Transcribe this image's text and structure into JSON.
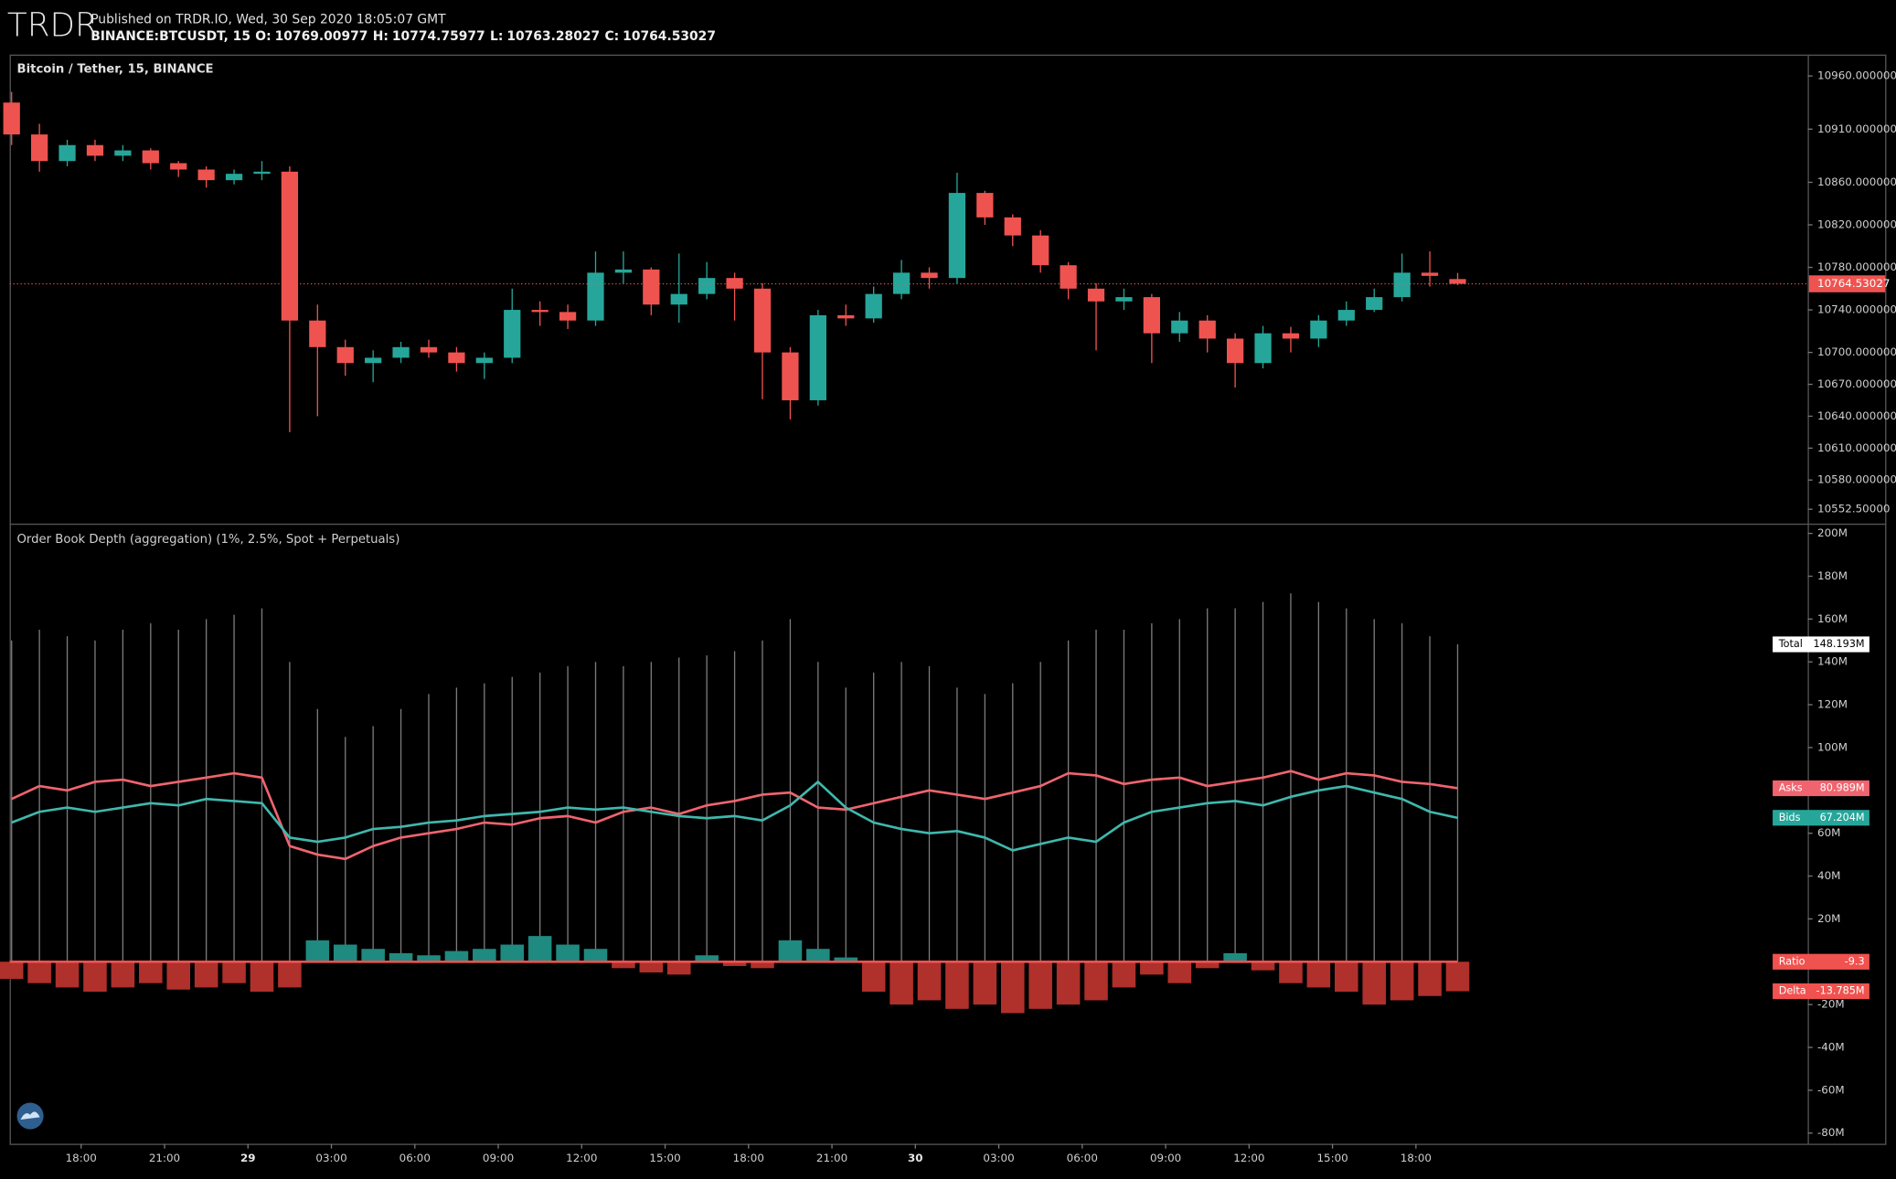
{
  "header": {
    "logo": "TRDR",
    "published": "Published on TRDR.IO, Wed, 30 Sep 2020 18:05:07 GMT",
    "symbol": "BINANCE:BTCUSDT, 15",
    "ohlc": [
      {
        "label": "O:",
        "value": 10769.00977
      },
      {
        "label": "H:",
        "value": 10774.75977
      },
      {
        "label": "L:",
        "value": 10763.28027
      },
      {
        "label": "C:",
        "value": 10764.53027
      }
    ]
  },
  "chart_data": [
    {
      "type": "candlestick",
      "title": "Bitcoin / Tether, 15, BINANCE",
      "up_color": "#26a69a",
      "down_color": "#ef5350",
      "x": [
        15.5,
        16.5,
        17.5,
        18.5,
        19.5,
        20.5,
        21.5,
        22.5,
        23.5,
        24.5,
        25.5,
        26.5,
        27.5,
        28.5,
        29.5,
        30.5,
        31.5,
        32.5,
        33.5,
        34.5,
        35.5,
        36.5,
        37.5,
        38.5,
        39.5,
        40.5,
        41.5,
        42.5,
        43.5,
        44.5,
        45.5,
        46.5,
        47.5,
        48.5,
        49.5,
        50.5,
        51.5,
        52.5,
        53.5,
        54.5,
        55.5,
        56.5,
        57.5,
        58.5,
        59.5,
        60.5,
        61.5,
        62.5,
        63.5,
        64.5,
        65.5,
        66.5,
        67.5
      ],
      "open": [
        10935,
        10905,
        10880,
        10895,
        10885,
        10890,
        10878,
        10872,
        10862,
        10868,
        10870,
        10730,
        10705,
        10690,
        10695,
        10705,
        10700,
        10690,
        10695,
        10740,
        10738,
        10730,
        10775,
        10778,
        10745,
        10755,
        10770,
        10760,
        10700,
        10655,
        10735,
        10732,
        10755,
        10775,
        10770,
        10850,
        10827,
        10810,
        10782,
        10760,
        10748,
        10752,
        10718,
        10730,
        10713,
        10690,
        10718,
        10713,
        10730,
        10740,
        10752,
        10775,
        10769.00977
      ],
      "high": [
        10945,
        10915,
        10900,
        10900,
        10895,
        10892,
        10880,
        10875,
        10872,
        10880,
        10875,
        10745,
        10712,
        10702,
        10710,
        10712,
        10705,
        10700,
        10760,
        10748,
        10745,
        10795,
        10795,
        10780,
        10793,
        10785,
        10775,
        10765,
        10705,
        10740,
        10745,
        10762,
        10787,
        10780,
        10869,
        10852,
        10830,
        10815,
        10785,
        10765,
        10760,
        10755,
        10738,
        10735,
        10718,
        10725,
        10724,
        10735,
        10748,
        10760,
        10793,
        10795,
        10774.75977
      ],
      "low": [
        10895,
        10870,
        10875,
        10880,
        10880,
        10872,
        10865,
        10855,
        10858,
        10862,
        10625,
        10640,
        10678,
        10672,
        10690,
        10695,
        10682,
        10675,
        10690,
        10725,
        10722,
        10725,
        10765,
        10735,
        10728,
        10750,
        10730,
        10656,
        10637,
        10650,
        10725,
        10728,
        10750,
        10760,
        10765,
        10820,
        10800,
        10775,
        10750,
        10702,
        10740,
        10690,
        10710,
        10700,
        10667,
        10685,
        10700,
        10705,
        10725,
        10738,
        10748,
        10762,
        10763.28027
      ],
      "close": [
        10905,
        10880,
        10895,
        10885,
        10890,
        10878,
        10872,
        10862,
        10868,
        10870,
        10730,
        10705,
        10690,
        10695,
        10705,
        10700,
        10690,
        10695,
        10740,
        10738,
        10730,
        10775,
        10778,
        10745,
        10755,
        10770,
        10760,
        10700,
        10655,
        10735,
        10732,
        10755,
        10775,
        10770,
        10850,
        10827,
        10810,
        10782,
        10760,
        10748,
        10752,
        10718,
        10730,
        10713,
        10690,
        10718,
        10713,
        10730,
        10740,
        10752,
        10775,
        10772,
        10764.53027
      ],
      "xlim": [
        15.43,
        80.09
      ],
      "ylim": [
        10539,
        10979
      ],
      "yticks": [
        {
          "value": 10960,
          "label": "10960.000000"
        },
        {
          "value": 10910,
          "label": "10910.000000"
        },
        {
          "value": 10860,
          "label": "10860.000000"
        },
        {
          "value": 10820,
          "label": "10820.000000"
        },
        {
          "value": 10780,
          "label": "10780.000000"
        },
        {
          "value": 10740,
          "label": "10740.000000"
        },
        {
          "value": 10700,
          "label": "10700.000000"
        },
        {
          "value": 10670,
          "label": "10670.000000"
        },
        {
          "value": 10640,
          "label": "10640.000000"
        },
        {
          "value": 10610,
          "label": "10610.000000"
        },
        {
          "value": 10580,
          "label": "10580.000000"
        },
        {
          "value": 10552.5,
          "label": "10552.50000"
        }
      ]
    },
    {
      "type": "combo",
      "title": "Order Book Depth (aggregation) (1%, 2.5%, Spot + Perpetuals)",
      "x": [
        15.5,
        16.5,
        17.5,
        18.5,
        19.5,
        20.5,
        21.5,
        22.5,
        23.5,
        24.5,
        25.5,
        26.5,
        27.5,
        28.5,
        29.5,
        30.5,
        31.5,
        32.5,
        33.5,
        34.5,
        35.5,
        36.5,
        37.5,
        38.5,
        39.5,
        40.5,
        41.5,
        42.5,
        43.5,
        44.5,
        45.5,
        46.5,
        47.5,
        48.5,
        49.5,
        50.5,
        51.5,
        52.5,
        53.5,
        54.5,
        55.5,
        56.5,
        57.5,
        58.5,
        59.5,
        60.5,
        61.5,
        62.5,
        63.5,
        64.5,
        65.5,
        66.5,
        67.5
      ],
      "series": [
        {
          "name": "Total",
          "type": "spike",
          "color": "#9a9a9a",
          "badge_color": "#ffffff",
          "badge": "148.193M",
          "values": [
            150,
            155,
            152,
            150,
            155,
            158,
            155,
            160,
            162,
            165,
            140,
            118,
            105,
            110,
            118,
            125,
            128,
            130,
            133,
            135,
            138,
            140,
            138,
            140,
            142,
            143,
            145,
            150,
            160,
            140,
            128,
            135,
            140,
            138,
            128,
            125,
            130,
            140,
            150,
            155,
            155,
            158,
            160,
            165,
            165,
            168,
            172,
            168,
            165,
            160,
            158,
            152,
            148.193
          ]
        },
        {
          "name": "Asks",
          "type": "line",
          "color": "#f0646f",
          "badge_color": "#f0646f",
          "badge": "80.989M",
          "values": [
            76,
            82,
            80,
            84,
            85,
            82,
            84,
            86,
            88,
            86,
            54,
            50,
            48,
            54,
            58,
            60,
            62,
            65,
            64,
            67,
            68,
            65,
            70,
            72,
            69,
            73,
            75,
            78,
            79,
            72,
            71,
            74,
            77,
            80,
            78,
            76,
            79,
            82,
            88,
            87,
            83,
            85,
            86,
            82,
            84,
            86,
            89,
            85,
            88,
            87,
            84,
            83,
            80.989
          ]
        },
        {
          "name": "Bids",
          "type": "line",
          "color": "#3fb8ad",
          "badge_color": "#26a69a",
          "badge": "67.204M",
          "values": [
            65,
            70,
            72,
            70,
            72,
            74,
            73,
            76,
            75,
            74,
            58,
            56,
            58,
            62,
            63,
            65,
            66,
            68,
            69,
            70,
            72,
            71,
            72,
            70,
            68,
            67,
            68,
            66,
            73,
            84,
            72,
            65,
            62,
            60,
            61,
            58,
            52,
            55,
            58,
            56,
            65,
            70,
            72,
            74,
            75,
            73,
            77,
            80,
            82,
            79,
            76,
            70,
            67.204
          ]
        },
        {
          "name": "Delta",
          "type": "histogram",
          "color": "#1f8a80",
          "negative_color": "#b0302b",
          "badge_color": "#f0524f",
          "badge": "-13.785M",
          "values": [
            -8,
            -10,
            -12,
            -14,
            -12,
            -10,
            -13,
            -12,
            -10,
            -14,
            -12,
            10,
            8,
            6,
            4,
            3,
            5,
            6,
            8,
            12,
            8,
            6,
            -3,
            -5,
            -6,
            3,
            -2,
            -3,
            10,
            6,
            2,
            -14,
            -20,
            -18,
            -22,
            -20,
            -24,
            -22,
            -20,
            -18,
            -12,
            -6,
            -10,
            -3,
            4,
            -4,
            -10,
            -12,
            -14,
            -20,
            -18,
            -16,
            -13.785
          ]
        }
      ],
      "ratio": {
        "name": "Ratio",
        "value": -9.3,
        "color": "#f0524f"
      },
      "xlim": [
        15.43,
        80.09
      ],
      "ylim": [
        -85,
        204
      ],
      "xticks": [
        {
          "value": 18,
          "label": "18:00"
        },
        {
          "value": 21,
          "label": "21:00"
        },
        {
          "value": 24,
          "label": "29"
        },
        {
          "value": 27,
          "label": "03:00"
        },
        {
          "value": 30,
          "label": "06:00"
        },
        {
          "value": 33,
          "label": "09:00"
        },
        {
          "value": 36,
          "label": "12:00"
        },
        {
          "value": 39,
          "label": "15:00"
        },
        {
          "value": 42,
          "label": "18:00"
        },
        {
          "value": 45,
          "label": "21:00"
        },
        {
          "value": 48,
          "label": "30"
        },
        {
          "value": 51,
          "label": "03:00"
        },
        {
          "value": 54,
          "label": "06:00"
        },
        {
          "value": 57,
          "label": "09:00"
        },
        {
          "value": 60,
          "label": "12:00"
        },
        {
          "value": 63,
          "label": "15:00"
        },
        {
          "value": 66,
          "label": "18:00"
        }
      ],
      "yticks": [
        {
          "value": 200,
          "label": "200M"
        },
        {
          "value": 180,
          "label": "180M"
        },
        {
          "value": 160,
          "label": "160M"
        },
        {
          "value": 140,
          "label": "140M"
        },
        {
          "value": 120,
          "label": "120M"
        },
        {
          "value": 100,
          "label": "100M"
        },
        {
          "value": 60,
          "label": "60M"
        },
        {
          "value": 40,
          "label": "40M"
        },
        {
          "value": 20,
          "label": "20M"
        },
        {
          "value": -20,
          "label": "-20M"
        },
        {
          "value": -40,
          "label": "-40M"
        },
        {
          "value": -60,
          "label": "-60M"
        },
        {
          "value": -80,
          "label": "-80M"
        }
      ]
    }
  ]
}
